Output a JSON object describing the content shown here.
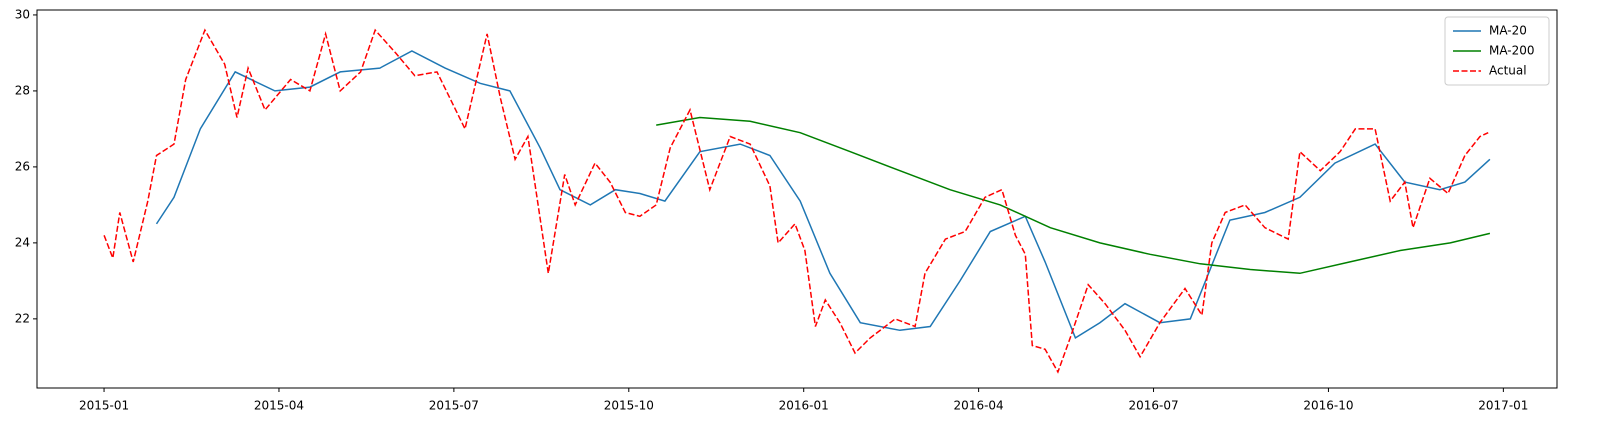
{
  "chart_data": {
    "type": "line",
    "xlim": [
      -1.15,
      24.92
    ],
    "ylim": [
      20.18,
      30.13
    ],
    "xticks": [
      {
        "value": 0,
        "label": "2015-01"
      },
      {
        "value": 3,
        "label": "2015-04"
      },
      {
        "value": 6,
        "label": "2015-07"
      },
      {
        "value": 9,
        "label": "2015-10"
      },
      {
        "value": 12,
        "label": "2016-01"
      },
      {
        "value": 15,
        "label": "2016-04"
      },
      {
        "value": 18,
        "label": "2016-07"
      },
      {
        "value": 21,
        "label": "2016-10"
      },
      {
        "value": 24,
        "label": "2017-01"
      }
    ],
    "yticks": [
      22,
      24,
      26,
      28,
      30
    ],
    "legend": "upper right",
    "series": [
      {
        "name": "MA-20",
        "color": "#1f77b4",
        "linestyle": "solid",
        "x": [
          0.9,
          1.2,
          1.65,
          2.25,
          2.93,
          3.53,
          4.05,
          4.73,
          5.28,
          5.85,
          6.45,
          6.96,
          7.48,
          7.82,
          8.34,
          8.77,
          9.19,
          9.62,
          10.22,
          10.91,
          11.42,
          11.94,
          12.45,
          12.97,
          13.65,
          14.17,
          14.68,
          15.2,
          15.8,
          16.14,
          16.66,
          17.08,
          17.51,
          18.11,
          18.63,
          19.31,
          19.91,
          20.51,
          21.11,
          21.8,
          22.31,
          22.91,
          23.34,
          23.77
        ],
        "values": [
          24.5,
          25.2,
          27.0,
          28.5,
          28.0,
          28.1,
          28.5,
          28.6,
          29.05,
          28.6,
          28.2,
          28.0,
          26.5,
          25.4,
          25.0,
          25.4,
          25.3,
          25.1,
          26.4,
          26.6,
          26.3,
          25.1,
          23.2,
          21.9,
          21.7,
          21.8,
          23.0,
          24.3,
          24.7,
          23.5,
          21.5,
          21.9,
          22.4,
          21.9,
          22.0,
          24.6,
          24.8,
          25.2,
          26.1,
          26.6,
          25.6,
          25.4,
          25.6,
          26.2
        ]
      },
      {
        "name": "MA-200",
        "color": "#008000",
        "linestyle": "solid",
        "x": [
          9.47,
          10.22,
          11.08,
          11.94,
          12.8,
          13.65,
          14.51,
          15.37,
          16.23,
          17.08,
          17.94,
          18.8,
          19.66,
          20.51,
          21.37,
          22.23,
          23.09,
          23.77
        ],
        "values": [
          27.1,
          27.3,
          27.2,
          26.9,
          26.4,
          25.9,
          25.4,
          25.0,
          24.4,
          24.0,
          23.7,
          23.45,
          23.3,
          23.2,
          23.5,
          23.8,
          24.0,
          24.25
        ]
      },
      {
        "name": "Actual",
        "color": "#ff0000",
        "linestyle": "dashed",
        "x": [
          0,
          0.15,
          0.27,
          0.5,
          0.75,
          0.9,
          1.2,
          1.4,
          1.73,
          2.07,
          2.28,
          2.47,
          2.76,
          3.2,
          3.53,
          3.8,
          4.05,
          4.4,
          4.65,
          5.0,
          5.33,
          5.71,
          6.19,
          6.57,
          6.8,
          7.05,
          7.27,
          7.62,
          7.9,
          8.08,
          8.42,
          8.68,
          8.94,
          9.19,
          9.47,
          9.71,
          10.05,
          10.39,
          10.74,
          11.08,
          11.42,
          11.56,
          11.85,
          12.02,
          12.2,
          12.37,
          12.62,
          12.88,
          13.14,
          13.57,
          13.91,
          14.08,
          14.43,
          14.77,
          15.11,
          15.4,
          15.63,
          15.8,
          15.92,
          16.14,
          16.36,
          16.57,
          16.88,
          17.17,
          17.51,
          17.77,
          18.11,
          18.54,
          18.83,
          19.0,
          19.23,
          19.57,
          19.91,
          20.31,
          20.51,
          20.86,
          21.2,
          21.46,
          21.8,
          22.06,
          22.31,
          22.45,
          22.74,
          23.05,
          23.34,
          23.6,
          23.74
        ],
        "values": [
          24.2,
          23.6,
          24.8,
          23.5,
          25.1,
          26.3,
          26.6,
          28.3,
          29.6,
          28.7,
          27.3,
          28.6,
          27.5,
          28.3,
          28.0,
          29.5,
          28.0,
          28.5,
          29.6,
          29.0,
          28.4,
          28.5,
          27.0,
          29.5,
          27.8,
          26.2,
          26.8,
          23.2,
          25.8,
          25.0,
          26.1,
          25.6,
          24.8,
          24.7,
          25.0,
          26.5,
          27.5,
          25.4,
          26.8,
          26.6,
          25.5,
          24.0,
          24.5,
          23.8,
          21.8,
          22.5,
          21.9,
          21.1,
          21.5,
          22.0,
          21.8,
          23.2,
          24.1,
          24.3,
          25.2,
          25.4,
          24.2,
          23.7,
          21.3,
          21.2,
          20.6,
          21.5,
          22.9,
          22.4,
          21.7,
          21.0,
          21.9,
          22.8,
          22.1,
          24.0,
          24.8,
          25.0,
          24.4,
          24.1,
          26.4,
          25.9,
          26.4,
          27.0,
          27.0,
          25.1,
          25.6,
          24.4,
          25.7,
          25.3,
          26.3,
          26.8,
          26.9
        ]
      }
    ]
  }
}
